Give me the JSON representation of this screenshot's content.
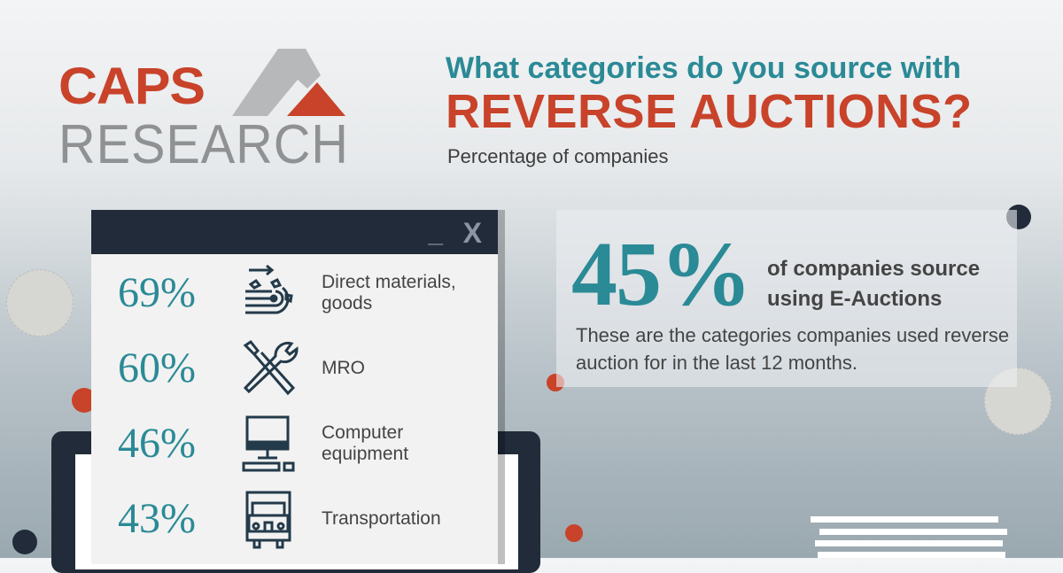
{
  "logo": {
    "line1": "CAPS",
    "line2": "RESEARCH"
  },
  "header": {
    "question": "What categories do you source with",
    "highlight": "REVERSE AUCTIONS?",
    "subtitle": "Percentage of companies"
  },
  "window": {
    "minimize": "_",
    "close": "X"
  },
  "categories": [
    {
      "percent": "69%",
      "label": "Direct materials, goods",
      "icon": "conveyor-goods-icon",
      "value": 69
    },
    {
      "percent": "60%",
      "label": "MRO",
      "icon": "wrench-screwdriver-icon",
      "value": 60
    },
    {
      "percent": "46%",
      "label": "Computer equipment",
      "icon": "desktop-computer-icon",
      "value": 46
    },
    {
      "percent": "43%",
      "label": "Transportation",
      "icon": "truck-icon",
      "value": 43
    }
  ],
  "stat": {
    "value": "45%",
    "text": "of companies source using E-Auctions",
    "description": "These are the categories companies used reverse auction for in the last 12 months."
  },
  "colors": {
    "teal": "#2a8a96",
    "orange": "#c8432a",
    "navy": "#222b3a"
  }
}
